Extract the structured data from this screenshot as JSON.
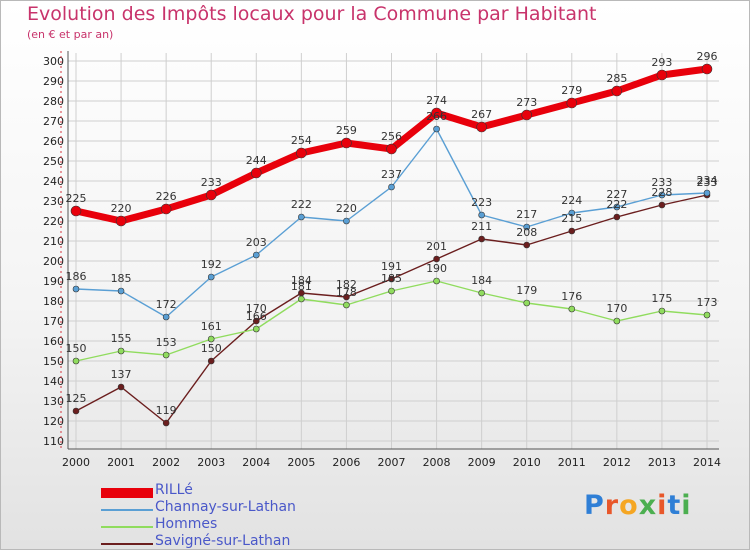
{
  "title": "Evolution des Impôts locaux pour la Commune par Habitant",
  "subtitle": "(en € et par an)",
  "brand": "Proxiti",
  "chart_data": {
    "type": "line",
    "x": [
      2000,
      2001,
      2002,
      2003,
      2004,
      2005,
      2006,
      2007,
      2008,
      2009,
      2010,
      2011,
      2012,
      2013,
      2014
    ],
    "ylim": [
      110,
      300
    ],
    "yticks": [
      110,
      120,
      130,
      140,
      150,
      160,
      170,
      180,
      190,
      200,
      210,
      220,
      230,
      240,
      250,
      260,
      270,
      280,
      290,
      300
    ],
    "grid": true,
    "legend_position": "bottom-left",
    "series": [
      {
        "name": "RILLé",
        "color": "#e8000b",
        "values": [
          225,
          220,
          226,
          233,
          244,
          254,
          259,
          256,
          274,
          267,
          273,
          279,
          285,
          293,
          296
        ]
      },
      {
        "name": "Channay-sur-Lathan",
        "color": "#5a9fd4",
        "values": [
          186,
          185,
          172,
          192,
          203,
          222,
          220,
          237,
          266,
          223,
          217,
          224,
          227,
          233,
          234
        ]
      },
      {
        "name": "Hommes",
        "color": "#90dc5e",
        "values": [
          150,
          155,
          153,
          161,
          166,
          181,
          178,
          185,
          190,
          184,
          179,
          176,
          170,
          175,
          173
        ]
      },
      {
        "name": "Savigné-sur-Lathan",
        "color": "#6b1e1e",
        "values": [
          125,
          137,
          119,
          150,
          170,
          184,
          182,
          191,
          201,
          211,
          208,
          215,
          222,
          228,
          233
        ]
      }
    ],
    "data_labels": [
      [
        "225",
        "220",
        "226",
        "233",
        "244",
        "254",
        "259",
        "256",
        "274",
        "267",
        "273",
        "279",
        "285",
        "293",
        "296"
      ],
      [
        "186",
        "185",
        "172",
        "192",
        "203",
        "222",
        "220",
        "237",
        "266",
        "223",
        "217",
        "224",
        "227",
        "233",
        "234"
      ],
      [
        "150",
        "155",
        "153",
        "161",
        "166",
        "181",
        "178",
        "185",
        "190",
        "184",
        "179",
        "176",
        "170",
        "175",
        "173"
      ],
      [
        "125",
        "137",
        "119",
        "150",
        "170",
        "184",
        "182",
        "191",
        "201",
        "211",
        "208",
        "215",
        "222",
        "228",
        "233"
      ]
    ]
  }
}
